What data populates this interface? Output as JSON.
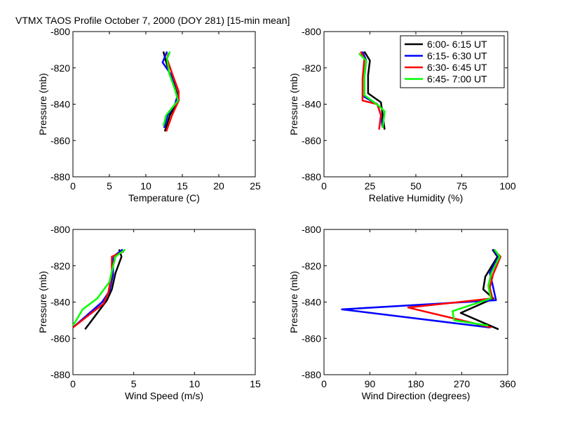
{
  "figure_title": "VTMX TAOS Profile   October 7, 2000 (DOY 281) [15-min mean]",
  "colors": {
    "s1": "#000000",
    "s2": "#0000ff",
    "s3": "#ff0000",
    "s4": "#00ff00"
  },
  "chart_data": [
    {
      "type": "line",
      "xlabel": "Temperature (C)",
      "ylabel": "Pressure (mb)",
      "xlim": [
        0,
        25
      ],
      "ylim": [
        -880,
        -800
      ],
      "xticks": [
        0,
        5,
        10,
        15,
        20,
        25
      ],
      "xtick_labels": [
        "0",
        "5",
        "10",
        "15",
        "20",
        "25"
      ],
      "yticks": [
        -880,
        -860,
        -840,
        -820,
        -800
      ],
      "ytick_labels": [
        "-880",
        "-860",
        "-840",
        "-820",
        "-800"
      ],
      "legend": false,
      "series": [
        {
          "name": "6:00- 6:15 UT",
          "color": "#000000",
          "x": [
            12.4,
            12.6,
            13.3,
            14.3,
            14.5,
            13.3,
            12.6
          ],
          "y": [
            -811,
            -814,
            -824,
            -834,
            -838,
            -846,
            -855
          ]
        },
        {
          "name": "6:15- 6:30 UT",
          "color": "#0000ff",
          "x": [
            12.9,
            12.3,
            13.5,
            14.5,
            14.0,
            13.0,
            12.5
          ],
          "y": [
            -811,
            -817,
            -824,
            -833,
            -840,
            -846,
            -853
          ]
        },
        {
          "name": "6:30- 6:45 UT",
          "color": "#ff0000",
          "x": [
            13.1,
            12.9,
            13.6,
            14.5,
            14.5,
            13.6,
            12.8
          ],
          "y": [
            -812,
            -815,
            -823,
            -833,
            -838,
            -846,
            -855
          ]
        },
        {
          "name": "6:45- 7:00 UT",
          "color": "#00ff00",
          "x": [
            13.3,
            12.9,
            13.2,
            14.0,
            14.4,
            12.8,
            12.4
          ],
          "y": [
            -811,
            -815,
            -823,
            -832,
            -838,
            -846,
            -852
          ]
        }
      ]
    },
    {
      "type": "line",
      "xlabel": "Relative Humidity (%)",
      "ylabel": "Pressure (mb)",
      "xlim": [
        0,
        100
      ],
      "ylim": [
        -880,
        -800
      ],
      "xticks": [
        0,
        25,
        50,
        75,
        100
      ],
      "xtick_labels": [
        "0",
        "25",
        "50",
        "75",
        "100"
      ],
      "yticks": [
        -880,
        -860,
        -840,
        -820,
        -800
      ],
      "ytick_labels": [
        "-880",
        "-860",
        "-840",
        "-820",
        "-800"
      ],
      "legend": true,
      "legend_location": "top-right",
      "series": [
        {
          "name": "6:00- 6:15 UT",
          "color": "#000000",
          "x": [
            22,
            25,
            24,
            24,
            31,
            32,
            33
          ],
          "y": [
            -811,
            -816,
            -824,
            -834,
            -839,
            -846,
            -854
          ]
        },
        {
          "name": "6:15- 6:30 UT",
          "color": "#0000ff",
          "x": [
            21,
            23,
            22,
            22,
            29,
            31,
            32
          ],
          "y": [
            -811,
            -816,
            -825,
            -836,
            -840,
            -846,
            -853
          ]
        },
        {
          "name": "6:30- 6:45 UT",
          "color": "#ff0000",
          "x": [
            20,
            22,
            21,
            21,
            29,
            31,
            30
          ],
          "y": [
            -811,
            -815,
            -826,
            -838,
            -840,
            -846,
            -854
          ]
        },
        {
          "name": "6:45- 7:00 UT",
          "color": "#00ff00",
          "x": [
            19,
            23,
            22,
            22,
            30,
            33,
            32
          ],
          "y": [
            -812,
            -816,
            -825,
            -835,
            -841,
            -844,
            -853
          ]
        }
      ]
    },
    {
      "type": "line",
      "xlabel": "Wind Speed (m/s)",
      "ylabel": "Pressure (mb)",
      "xlim": [
        0,
        15
      ],
      "ylim": [
        -880,
        -800
      ],
      "xticks": [
        0,
        5,
        10,
        15
      ],
      "xtick_labels": [
        "0",
        "5",
        "10",
        "15"
      ],
      "yticks": [
        -880,
        -860,
        -840,
        -820,
        -800
      ],
      "ytick_labels": [
        "-880",
        "-860",
        "-840",
        "-820",
        "-800"
      ],
      "legend": false,
      "series": [
        {
          "name": "6:00- 6:15 UT",
          "color": "#000000",
          "x": [
            3.8,
            4.0,
            3.5,
            3.2,
            2.8,
            1.0
          ],
          "y": [
            -811,
            -815,
            -824,
            -833,
            -839,
            -855
          ]
        },
        {
          "name": "6:15- 6:30 UT",
          "color": "#0000ff",
          "x": [
            4.1,
            3.3,
            3.3,
            3.0,
            2.4,
            0.0
          ],
          "y": [
            -811,
            -815,
            -825,
            -834,
            -840,
            -854
          ]
        },
        {
          "name": "6:30- 6:45 UT",
          "color": "#ff0000",
          "x": [
            4.2,
            3.2,
            3.2,
            2.9,
            2.5,
            0.0
          ],
          "y": [
            -812,
            -815,
            -824,
            -835,
            -841,
            -854
          ]
        },
        {
          "name": "6:45- 7:00 UT",
          "color": "#00ff00",
          "x": [
            4.3,
            3.5,
            3.2,
            3.0,
            2.0,
            0.8,
            0.0
          ],
          "y": [
            -811,
            -815,
            -823,
            -829,
            -838,
            -844,
            -853
          ]
        }
      ]
    },
    {
      "type": "line",
      "xlabel": "Wind Direction (degrees)",
      "ylabel": "Pressure (mb)",
      "xlim": [
        0,
        360
      ],
      "ylim": [
        -880,
        -800
      ],
      "xticks": [
        0,
        90,
        180,
        270,
        360
      ],
      "xtick_labels": [
        "0",
        "90",
        "180",
        "270",
        "360"
      ],
      "yticks": [
        -880,
        -860,
        -840,
        -820,
        -800
      ],
      "ytick_labels": [
        "-880",
        "-860",
        "-840",
        "-820",
        "-800"
      ],
      "legend": false,
      "series": [
        {
          "name": "6:00- 6:15 UT",
          "color": "#000000",
          "x": [
            330,
            340,
            316,
            312,
            332,
            268,
            342
          ],
          "y": [
            -811,
            -815,
            -826,
            -833,
            -838,
            -846,
            -855
          ]
        },
        {
          "name": "6:15- 6:30 UT",
          "color": "#0000ff",
          "x": [
            332,
            342,
            325,
            330,
            337,
            35,
            325
          ],
          "y": [
            -811,
            -815,
            -824,
            -830,
            -839,
            -844,
            -854
          ]
        },
        {
          "name": "6:30- 6:45 UT",
          "color": "#ff0000",
          "x": [
            336,
            346,
            331,
            325,
            330,
            165,
            328
          ],
          "y": [
            -812,
            -815,
            -825,
            -832,
            -838,
            -843,
            -854
          ]
        },
        {
          "name": "6:45- 7:00 UT",
          "color": "#00ff00",
          "x": [
            334,
            344,
            328,
            322,
            327,
            252,
            255,
            322
          ],
          "y": [
            -811,
            -815,
            -824,
            -831,
            -838,
            -845,
            -850,
            -853
          ]
        }
      ]
    }
  ]
}
